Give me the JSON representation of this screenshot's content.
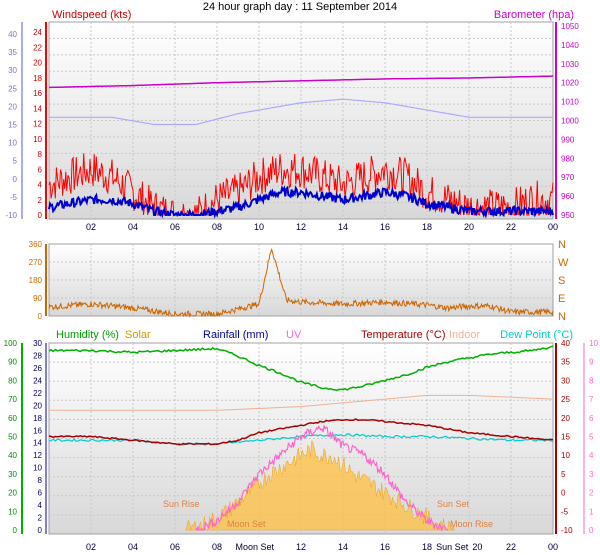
{
  "title": "24 hour graph day : 11 September 2014",
  "colors": {
    "windspeed": "#ff0000",
    "windavg": "#0000cc",
    "temp_axis": "#ff0000",
    "barometer": "#cc00cc",
    "baro_axis": "#aaaaff",
    "direction": "#cc6600",
    "humidity": "#00b000",
    "solar": "#ffc040",
    "rainfall": "#000099",
    "uv": "#ff66cc",
    "temperature": "#aa0000",
    "indoor": "#f0b090",
    "dewpoint": "#00cccc",
    "grid": "#c8c8c8",
    "panel_top": "#ffffff",
    "panel_bottom": "#d8d8d8"
  },
  "hours_labels": [
    "02",
    "04",
    "06",
    "08",
    "10",
    "12",
    "14",
    "16",
    "18",
    "20",
    "22",
    "00"
  ],
  "bottom_hours_labels": [
    "02",
    "04",
    "06",
    "08",
    "Moon Set",
    "12",
    "14",
    "16",
    "18",
    "Sun Set",
    "20",
    "22",
    "00"
  ],
  "chart_data": [
    {
      "type": "line",
      "name": "wind-and-pressure",
      "left_axis_label": "Windspeed (kts)",
      "right_axis_label": "Barometer (hpa)",
      "left_ticks": [
        "24",
        "22",
        "20",
        "18",
        "16",
        "14",
        "12",
        "10",
        "8",
        "6",
        "4",
        "2",
        "0"
      ],
      "outer_left_ticks": [
        "40",
        "35",
        "30",
        "25",
        "20",
        "15",
        "10",
        "5",
        "0",
        "-5",
        "-10"
      ],
      "right_ticks": [
        "1050",
        "1040",
        "1030",
        "1020",
        "1010",
        "1000",
        "990",
        "980",
        "970",
        "960",
        "950"
      ],
      "x_hours_range": [
        0,
        24
      ],
      "series": [
        {
          "key": "barometer_hpa",
          "x": [
            0,
            4,
            8,
            12,
            16,
            20,
            24
          ],
          "y": [
            1017.5,
            1018.5,
            1020,
            1021,
            1022,
            1022.5,
            1023.5
          ]
        },
        {
          "key": "temp_axis_line",
          "x": [
            0,
            3,
            5,
            7,
            9,
            12,
            14,
            16,
            18,
            20,
            24
          ],
          "y": [
            17,
            17,
            15,
            15,
            18,
            21,
            22,
            21,
            19,
            17,
            17
          ]
        },
        {
          "key": "windspeed_gust_kts",
          "x": [
            0,
            1,
            2,
            3,
            4,
            5,
            6,
            7,
            8,
            9,
            10,
            11,
            12,
            13,
            14,
            15,
            16,
            17,
            18,
            19,
            20,
            21,
            22,
            23,
            24
          ],
          "y": [
            4,
            5,
            6,
            5,
            3,
            1,
            0,
            0,
            2,
            3,
            5,
            6,
            6,
            5,
            4,
            5,
            6,
            5,
            3,
            2,
            1,
            1,
            1,
            2,
            2
          ]
        },
        {
          "key": "windspeed_avg_kts",
          "x": [
            0,
            1,
            2,
            3,
            4,
            5,
            6,
            7,
            8,
            9,
            10,
            11,
            12,
            13,
            14,
            15,
            16,
            17,
            18,
            19,
            20,
            21,
            22,
            23,
            24
          ],
          "y": [
            1,
            1.5,
            2,
            2,
            1.5,
            0.5,
            0,
            0,
            0.5,
            1,
            2,
            3,
            3,
            2.5,
            2,
            2.5,
            3,
            2.5,
            1.5,
            1,
            0.5,
            0.5,
            0.5,
            0.5,
            0.5
          ]
        }
      ]
    },
    {
      "type": "line",
      "name": "wind-direction",
      "left_ticks": [
        "360",
        "270",
        "180",
        "90",
        "0"
      ],
      "right_ticks": [
        "N",
        "W",
        "S",
        "E",
        "N"
      ],
      "x_hours_range": [
        0,
        24
      ],
      "series": [
        {
          "key": "direction_deg",
          "x": [
            0,
            2,
            4,
            6,
            8,
            10,
            10.6,
            11.3,
            12,
            14,
            16,
            18,
            19,
            20,
            21,
            22,
            24
          ],
          "y": [
            45,
            60,
            40,
            10,
            10,
            60,
            340,
            80,
            70,
            60,
            70,
            55,
            40,
            50,
            50,
            20,
            20
          ]
        }
      ]
    },
    {
      "type": "line",
      "name": "humidity-temperature",
      "legend": [
        "Humidity (%)",
        "Solar",
        "Rainfall (mm)",
        "UV",
        "Temperature (°C)",
        "Indoor",
        "Dew Point (°C)"
      ],
      "left_ticks": [
        "100",
        "90",
        "80",
        "70",
        "60",
        "50",
        "40",
        "30",
        "20",
        "10",
        "0"
      ],
      "inner_left_ticks": [
        "30",
        "28",
        "26",
        "24",
        "22",
        "20",
        "18",
        "16",
        "14",
        "12",
        "10",
        "8",
        "6",
        "4",
        "2",
        "0"
      ],
      "right_ticks": [
        "40",
        "35",
        "30",
        "25",
        "20",
        "15",
        "10",
        "5",
        "0",
        "-5",
        "-10"
      ],
      "far_right_ticks": [
        "10",
        "9",
        "8",
        "7",
        "6",
        "5",
        "4",
        "3",
        "2",
        "1",
        "0"
      ],
      "annotations": [
        "Sun Rise",
        "Moon Set",
        "Sun Set",
        "Moon Rise"
      ],
      "x_hours_range": [
        0,
        24
      ],
      "series": [
        {
          "key": "humidity_pct",
          "x": [
            0,
            2,
            4,
            6,
            8,
            9,
            10,
            11,
            12,
            13,
            14,
            15,
            16,
            17,
            18,
            19,
            20,
            21,
            22,
            23,
            24
          ],
          "y": [
            96,
            96,
            95,
            96,
            97,
            93,
            88,
            84,
            79,
            76,
            75,
            77,
            80,
            83,
            87,
            90,
            92,
            94,
            95,
            96,
            98
          ]
        },
        {
          "key": "temperature_c",
          "x": [
            0,
            2,
            4,
            6,
            8,
            9,
            10,
            11,
            12,
            13,
            14,
            15,
            16,
            17,
            18,
            19,
            20,
            21,
            22,
            23,
            24
          ],
          "y": [
            15,
            15,
            14,
            13,
            13,
            14,
            16,
            17,
            18,
            19,
            19.5,
            19.5,
            19,
            18.5,
            18,
            17,
            16,
            15.5,
            15,
            14.5,
            14
          ]
        },
        {
          "key": "dewpoint_c",
          "x": [
            0,
            4,
            6,
            8,
            10,
            12,
            14,
            16,
            18,
            20,
            22,
            24
          ],
          "y": [
            14,
            14,
            13,
            13,
            14,
            15,
            15.5,
            15,
            15,
            14.5,
            14,
            14
          ]
        },
        {
          "key": "indoor_c",
          "x": [
            0,
            4,
            8,
            12,
            16,
            18,
            20,
            24
          ],
          "y": [
            22,
            22,
            22,
            23,
            25,
            26,
            26,
            25
          ]
        },
        {
          "key": "solar_scaled",
          "x": [
            6.5,
            7.5,
            8.5,
            9.5,
            10.5,
            11.5,
            12.5,
            13,
            13.5,
            14.5,
            15.5,
            16.5,
            17.5,
            18.5,
            19.3
          ],
          "y": [
            0,
            1,
            3,
            6,
            9,
            11,
            13,
            12,
            12,
            9,
            7,
            5,
            3,
            1,
            0
          ]
        },
        {
          "key": "uv_index",
          "x": [
            7,
            8,
            9,
            10,
            11,
            12,
            13,
            14,
            15,
            16,
            17,
            18,
            19
          ],
          "y": [
            0,
            0.5,
            1.5,
            3,
            4,
            5,
            5.5,
            4.5,
            4,
            3,
            1.5,
            0.5,
            0
          ]
        }
      ]
    }
  ]
}
